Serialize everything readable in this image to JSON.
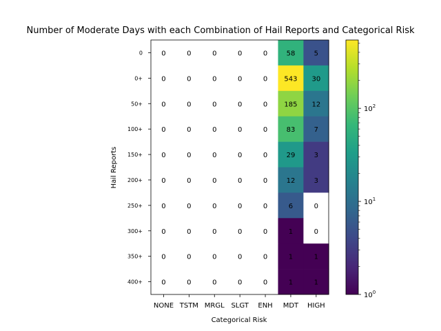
{
  "chart_data": {
    "type": "heatmap",
    "title": "Number of Moderate Days with each Combination of Hail Reports and Categorical Risk",
    "xlabel": "Categorical Risk",
    "ylabel": "Hail Reports",
    "x_categories": [
      "NONE",
      "TSTM",
      "MRGL",
      "SLGT",
      "ENH",
      "MDT",
      "HIGH"
    ],
    "y_categories": [
      "0",
      "0+",
      "50+",
      "100+",
      "150+",
      "200+",
      "250+",
      "300+",
      "350+",
      "400+"
    ],
    "values": [
      [
        0,
        0,
        0,
        0,
        0,
        58,
        5
      ],
      [
        0,
        0,
        0,
        0,
        0,
        543,
        30
      ],
      [
        0,
        0,
        0,
        0,
        0,
        185,
        12
      ],
      [
        0,
        0,
        0,
        0,
        0,
        83,
        7
      ],
      [
        0,
        0,
        0,
        0,
        0,
        29,
        3
      ],
      [
        0,
        0,
        0,
        0,
        0,
        12,
        3
      ],
      [
        0,
        0,
        0,
        0,
        0,
        6,
        0
      ],
      [
        0,
        0,
        0,
        0,
        0,
        1,
        0
      ],
      [
        0,
        0,
        0,
        0,
        0,
        1,
        1
      ],
      [
        0,
        0,
        0,
        0,
        0,
        1,
        1
      ]
    ],
    "color_scale": "log",
    "colormap": "viridis",
    "color_range": [
      1,
      543
    ],
    "colorbar_ticks": [
      {
        "value": 1,
        "base": "10",
        "exp": "0"
      },
      {
        "value": 10,
        "base": "10",
        "exp": "1"
      },
      {
        "value": 100,
        "base": "10",
        "exp": "2"
      }
    ],
    "zero_color": "#ffffff",
    "grid": false
  }
}
